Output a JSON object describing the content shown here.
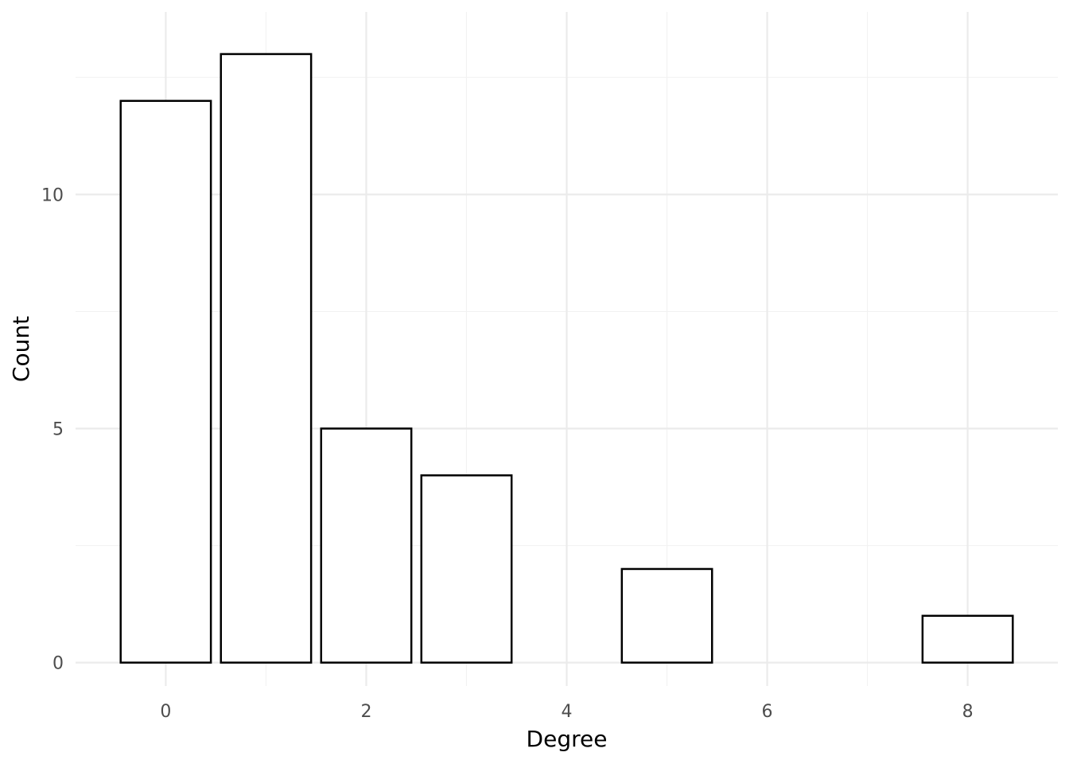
{
  "chart_data": {
    "type": "bar",
    "title": "",
    "xlabel": "Degree",
    "ylabel": "Count",
    "x": [
      0,
      1,
      2,
      3,
      5,
      8
    ],
    "values": [
      12,
      13,
      5,
      4,
      2,
      1
    ],
    "xlim": [
      -0.9,
      8.9
    ],
    "ylim": [
      -0.5,
      13.9
    ],
    "x_major_ticks": [
      0,
      2,
      4,
      6,
      8
    ],
    "x_tick_labels": [
      "0",
      "2",
      "4",
      "6",
      "8"
    ],
    "x_minor_ticks": [
      1,
      3,
      5,
      7
    ],
    "y_major_ticks": [
      0,
      5,
      10
    ],
    "y_tick_labels": [
      "0",
      "5",
      "10"
    ],
    "y_minor_ticks": [
      2.5,
      7.5,
      12.5
    ],
    "bar_width": 0.9,
    "grid": true,
    "legend": "none",
    "colors": {
      "bar_fill": "#ffffff",
      "bar_outline": "#000000",
      "grid_major": "#ebebeb",
      "grid_minor": "#f2f2f2",
      "tick_text": "#4d4d4d",
      "axis_title": "#000000"
    }
  }
}
